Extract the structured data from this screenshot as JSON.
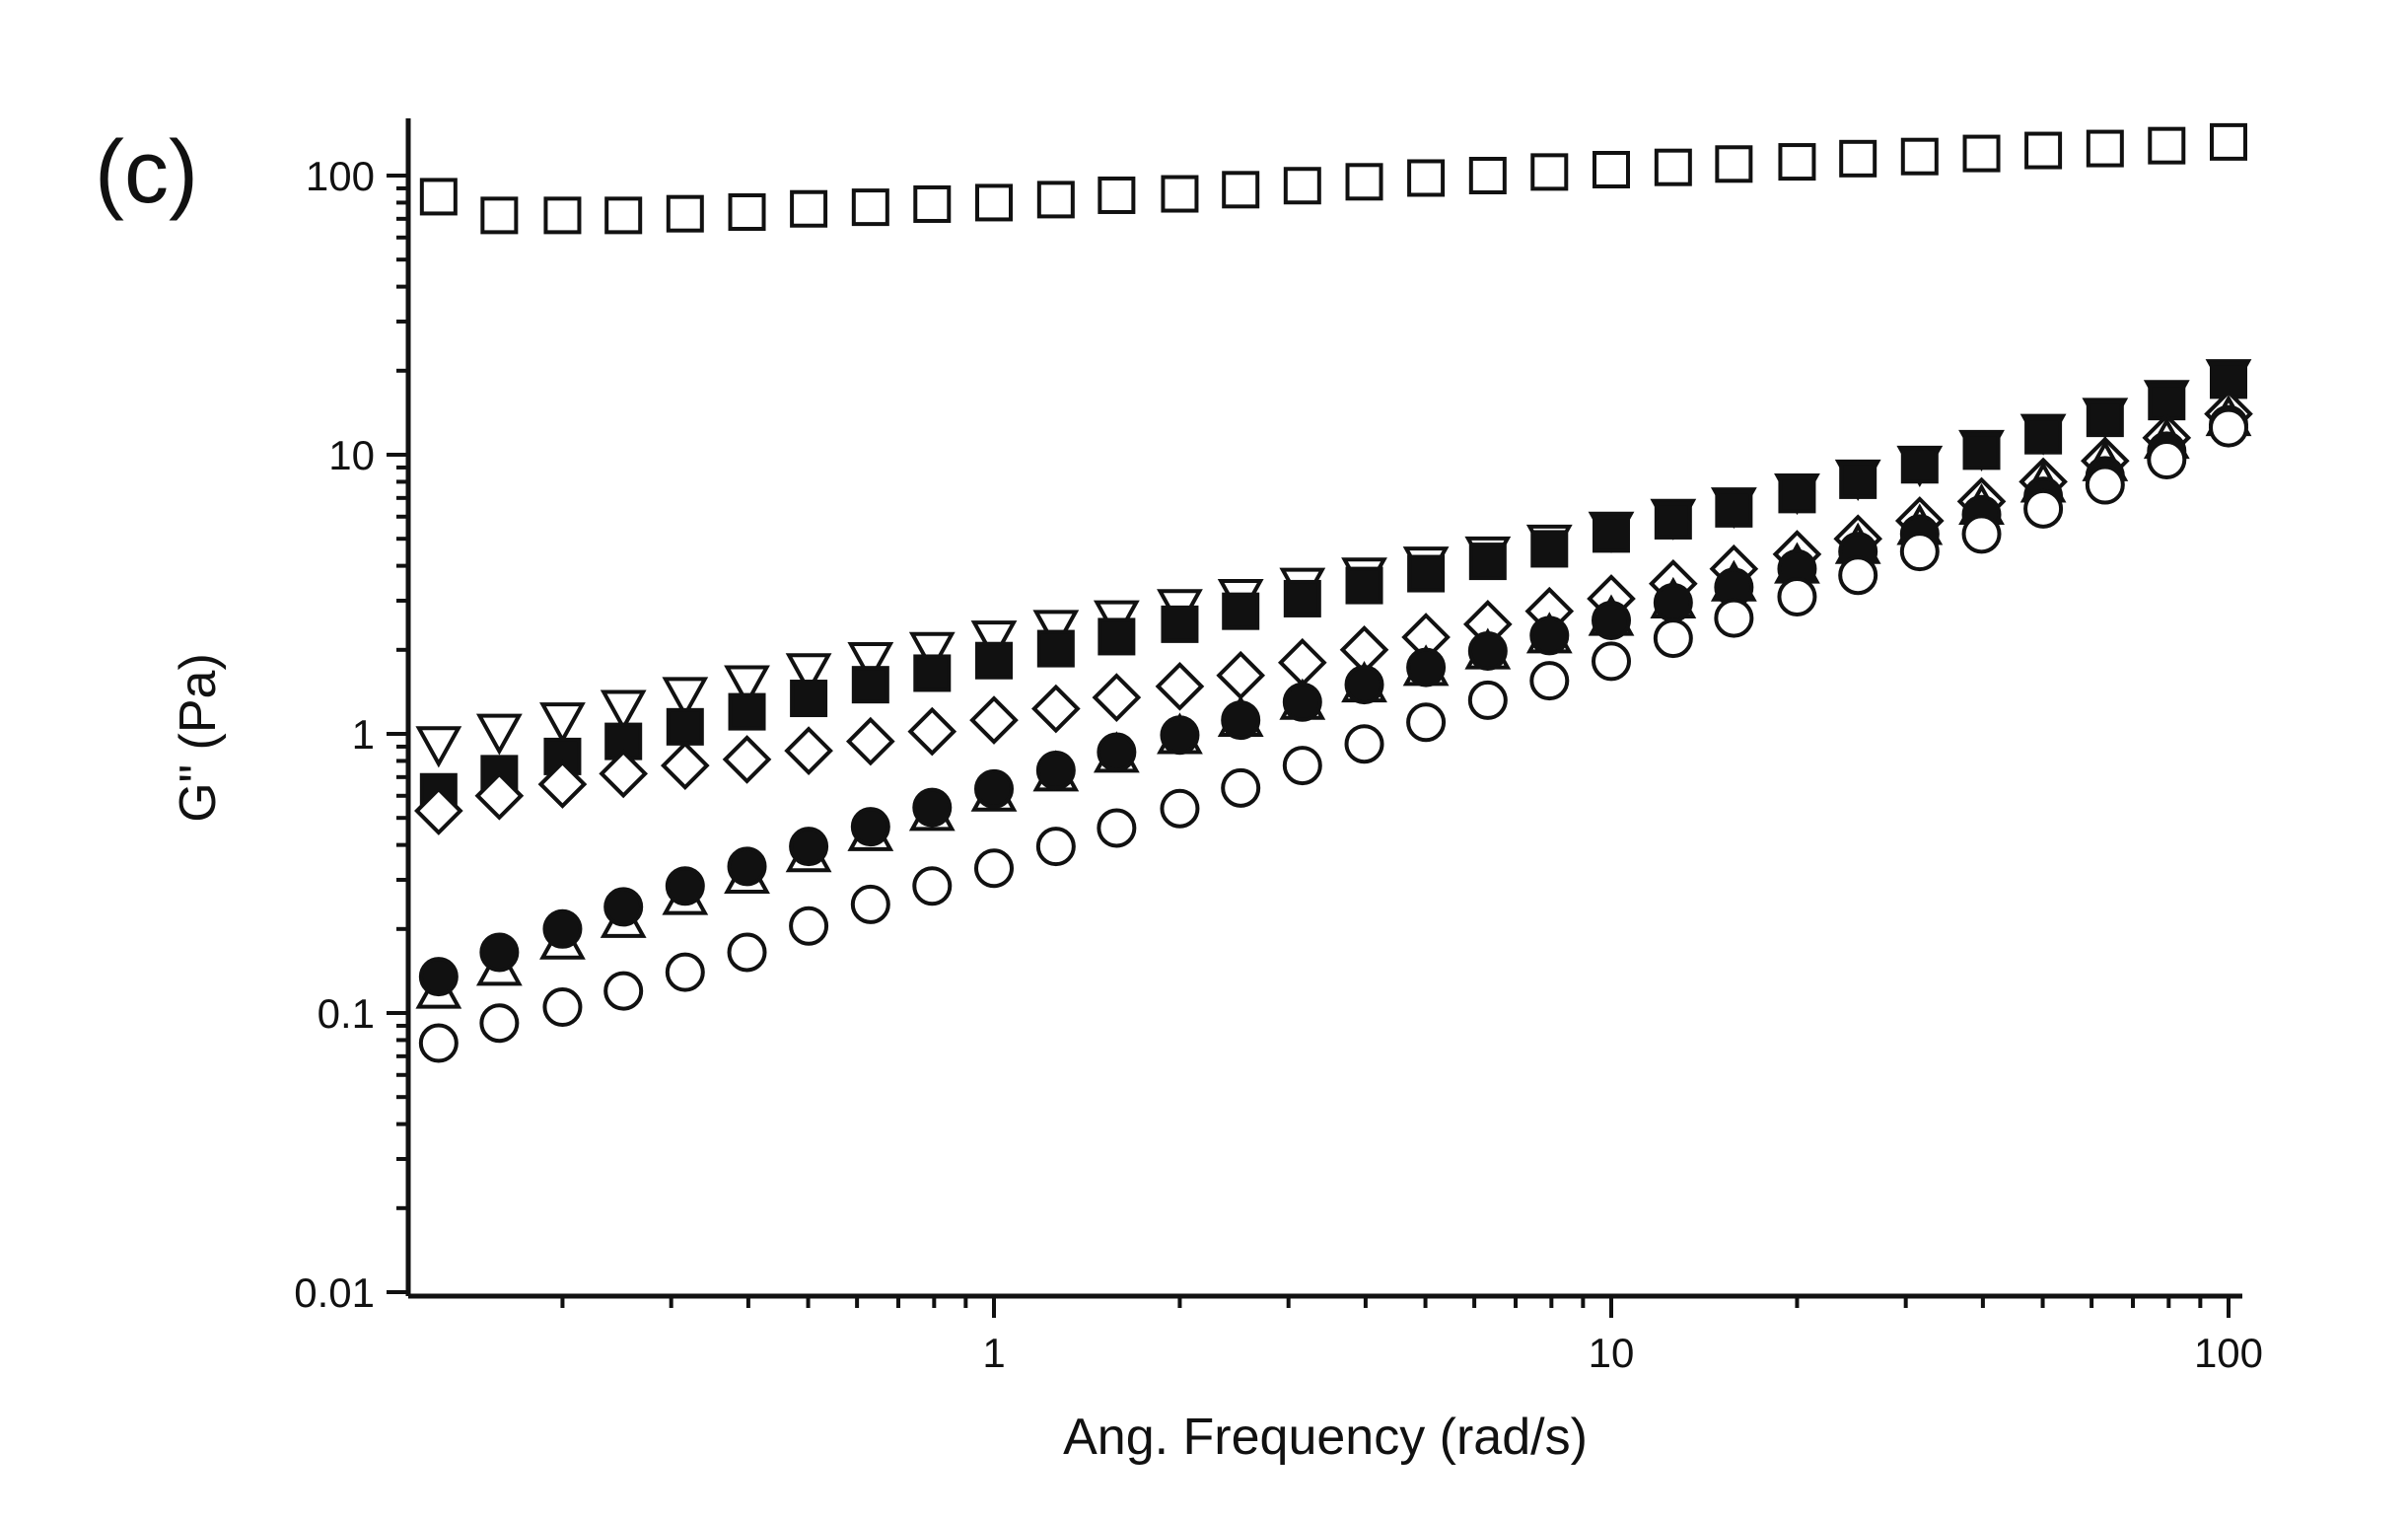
{
  "panel_label": "(c)",
  "colors": {
    "ink": "#111111",
    "background": "#ffffff"
  },
  "chart_data": {
    "type": "scatter",
    "title": "",
    "xlabel": "Ang. Frequency (rad/s)",
    "ylabel": "G\" (Pa)",
    "xscale": "log",
    "yscale": "log",
    "xlim": [
      0.126,
      100
    ],
    "ylim": [
      0.01,
      160
    ],
    "grid": false,
    "legend": "none",
    "x_ticks": [
      {
        "value": 1,
        "label": "1"
      },
      {
        "value": 10,
        "label": "10"
      },
      {
        "value": 100,
        "label": "100"
      }
    ],
    "y_ticks": [
      {
        "value": 0.01,
        "label": "0.01"
      },
      {
        "value": 0.1,
        "label": "0.1"
      },
      {
        "value": 1,
        "label": "1"
      },
      {
        "value": 10,
        "label": "10"
      },
      {
        "value": 100,
        "label": "100"
      }
    ],
    "x": [
      0.126,
      0.158,
      0.2,
      0.251,
      0.316,
      0.398,
      0.501,
      0.631,
      0.794,
      1,
      1.26,
      1.58,
      2,
      2.51,
      3.16,
      3.98,
      5.01,
      6.31,
      7.94,
      10,
      12.6,
      15.8,
      20,
      25.1,
      31.6,
      39.8,
      50.1,
      63.1,
      79.4,
      100
    ],
    "series": [
      {
        "marker": "square-open",
        "values": [
          84,
          72,
          72,
          72,
          73,
          74,
          76,
          77,
          79,
          80,
          82,
          85,
          86,
          89,
          92,
          95,
          98,
          100,
          103,
          105,
          107,
          110,
          112,
          115,
          117,
          120,
          123,
          125,
          128,
          132
        ]
      },
      {
        "marker": "triangle-down-open",
        "values": [
          0.92,
          1.02,
          1.12,
          1.24,
          1.38,
          1.52,
          1.68,
          1.84,
          2.0,
          2.2,
          2.4,
          2.6,
          2.85,
          3.1,
          3.4,
          3.7,
          4.05,
          4.4,
          4.85,
          5.4,
          6.0,
          6.6,
          7.4,
          8.3,
          9.3,
          10.6,
          12.1,
          13.8,
          16.0,
          19.0
        ]
      },
      {
        "marker": "square-filled",
        "values": [
          0.62,
          0.72,
          0.83,
          0.94,
          1.06,
          1.2,
          1.34,
          1.5,
          1.65,
          1.83,
          2.02,
          2.23,
          2.47,
          2.75,
          3.05,
          3.4,
          3.75,
          4.15,
          4.6,
          5.2,
          5.8,
          6.4,
          7.2,
          8.1,
          9.2,
          10.3,
          11.7,
          13.5,
          15.5,
          18.5
        ]
      },
      {
        "marker": "diamond-open",
        "values": [
          0.53,
          0.6,
          0.66,
          0.72,
          0.77,
          0.81,
          0.87,
          0.94,
          1.02,
          1.12,
          1.23,
          1.35,
          1.48,
          1.62,
          1.8,
          2.0,
          2.22,
          2.47,
          2.75,
          3.05,
          3.45,
          3.9,
          4.4,
          5.0,
          5.8,
          6.8,
          8.0,
          9.5,
          11.5,
          14.0
        ]
      },
      {
        "marker": "triangle-up-open",
        "values": [
          0.12,
          0.145,
          0.18,
          0.215,
          0.26,
          0.31,
          0.37,
          0.44,
          0.52,
          0.61,
          0.72,
          0.84,
          0.98,
          1.13,
          1.3,
          1.5,
          1.72,
          1.97,
          2.25,
          2.6,
          3.0,
          3.45,
          4.0,
          4.7,
          5.5,
          6.5,
          7.8,
          9.3,
          11.2,
          13.5
        ]
      },
      {
        "marker": "circle-filled",
        "values": [
          0.135,
          0.165,
          0.2,
          0.24,
          0.285,
          0.335,
          0.395,
          0.465,
          0.545,
          0.635,
          0.74,
          0.86,
          0.99,
          1.12,
          1.3,
          1.5,
          1.73,
          1.98,
          2.25,
          2.55,
          2.95,
          3.35,
          3.9,
          4.5,
          5.2,
          6.1,
          7.1,
          8.4,
          10.3,
          12.8
        ]
      },
      {
        "marker": "circle-open",
        "values": [
          0.078,
          0.092,
          0.105,
          0.12,
          0.14,
          0.165,
          0.205,
          0.245,
          0.285,
          0.33,
          0.395,
          0.46,
          0.54,
          0.64,
          0.77,
          0.92,
          1.1,
          1.32,
          1.55,
          1.82,
          2.2,
          2.6,
          3.1,
          3.7,
          4.5,
          5.2,
          6.4,
          7.8,
          9.6,
          12.5
        ]
      }
    ]
  }
}
